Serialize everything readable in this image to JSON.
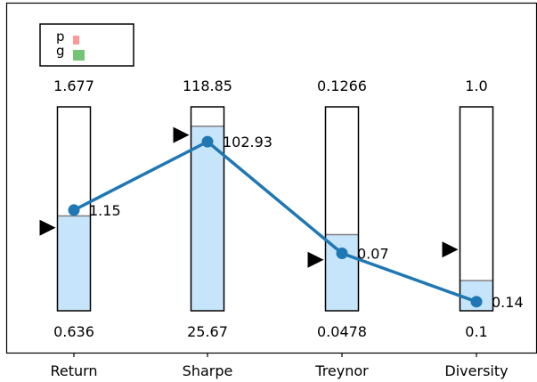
{
  "chart_data": {
    "type": "bar",
    "categories": [
      "Return",
      "Sharpe",
      "Treynor",
      "Diversity"
    ],
    "ranges": [
      {
        "min": 0.636,
        "max": 1.677,
        "min_label": "0.636",
        "max_label": "1.677"
      },
      {
        "min": 25.67,
        "max": 118.85,
        "min_label": "25.67",
        "max_label": "118.85"
      },
      {
        "min": 0.0478,
        "max": 0.1266,
        "min_label": "0.0478",
        "max_label": "0.1266"
      },
      {
        "min": 0.1,
        "max": 1.0,
        "min_label": "0.1",
        "max_label": "1.0"
      }
    ],
    "series": [
      {
        "name": "p",
        "values": [
          1.15,
          102.93,
          0.07,
          0.14
        ],
        "labels": [
          "1.15",
          "102.93",
          "0.07",
          "0.14"
        ],
        "color": "#1f77b4"
      }
    ],
    "fill_levels": [
      1.12,
      110.0,
      0.0772,
      0.233
    ],
    "targets": [
      1.06,
      106.0,
      0.0675,
      0.37
    ],
    "legend": [
      {
        "label": "p",
        "color": "#ff9896"
      },
      {
        "label": "g",
        "color": "#74c476"
      }
    ],
    "legend_position": "top-left",
    "bar_fill_color": "#c6e5fa",
    "marker_color": "#000000",
    "grid": false,
    "title": "",
    "xlabel": "",
    "ylabel": ""
  }
}
